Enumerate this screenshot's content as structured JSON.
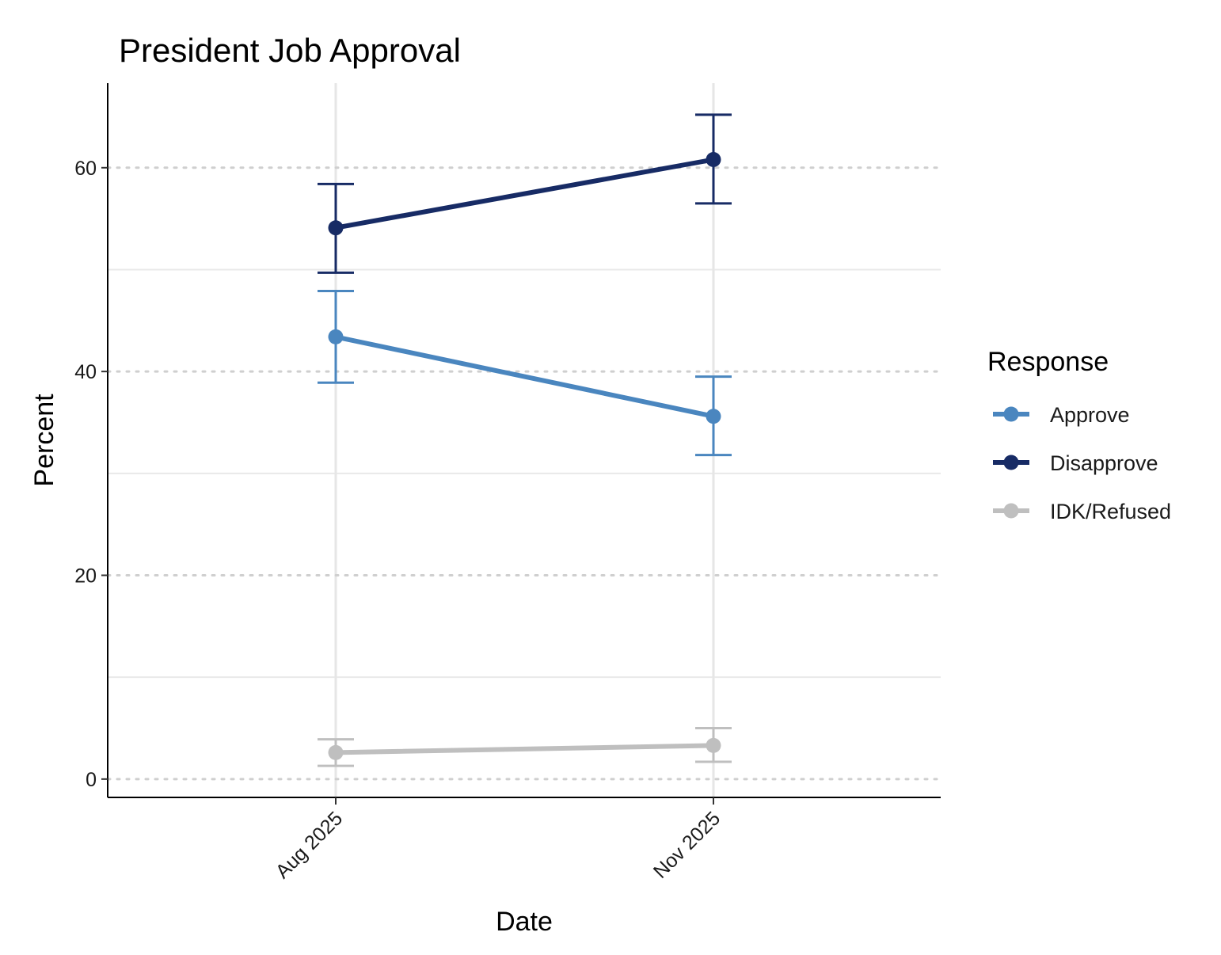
{
  "chart_data": {
    "type": "line",
    "title": "President Job Approval",
    "xlabel": "Date",
    "ylabel": "Percent",
    "categories": [
      "Aug 2025",
      "Nov 2025"
    ],
    "ylim": [
      -1.8,
      68.3
    ],
    "yticks": [
      0,
      20,
      40,
      60
    ],
    "ytick_labels": [
      "0",
      "20",
      "40",
      "60"
    ],
    "grid": "major y dotted, minor y light solid, x light solid",
    "legend": {
      "title": "Response",
      "position": "right"
    },
    "series": [
      {
        "name": "Approve",
        "color": "#4A86BF",
        "values": [
          43.4,
          35.6
        ],
        "lower": [
          38.9,
          31.8
        ],
        "upper": [
          47.9,
          39.5
        ]
      },
      {
        "name": "Disapprove",
        "color": "#172B65",
        "values": [
          54.1,
          60.8
        ],
        "lower": [
          49.7,
          56.5
        ],
        "upper": [
          58.4,
          65.2
        ]
      },
      {
        "name": "IDK/Refused",
        "color": "#BFBFBF",
        "values": [
          2.6,
          3.3
        ],
        "lower": [
          1.3,
          1.7
        ],
        "upper": [
          3.9,
          5.0
        ]
      }
    ]
  }
}
